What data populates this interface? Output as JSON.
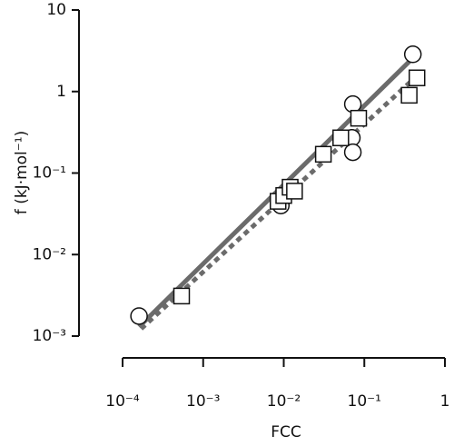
{
  "chart_data": {
    "type": "scatter",
    "xscale": "log",
    "yscale": "log",
    "xlabel": "FCC",
    "ylabel": "f (kJ·mol⁻¹)",
    "xlim": [
      0.0001,
      1
    ],
    "ylim": [
      0.001,
      10
    ],
    "xticks": [
      {
        "value": 0.0001,
        "label": "10⁻⁴"
      },
      {
        "value": 0.001,
        "label": "10⁻³"
      },
      {
        "value": 0.01,
        "label": "10⁻²"
      },
      {
        "value": 0.1,
        "label": "10⁻¹"
      },
      1
    ],
    "yticks": [
      {
        "value": 0.001,
        "label": "10⁻³"
      },
      {
        "value": 0.01,
        "label": "10⁻²"
      },
      {
        "value": 0.1,
        "label": "10⁻¹"
      },
      1,
      10
    ],
    "series": [
      {
        "marker": "circle",
        "color": "#111111",
        "x": [
          0.00016,
          0.0092,
          0.07,
          0.072,
          0.072,
          0.4
        ],
        "values": [
          0.00176,
          0.04,
          0.27,
          0.18,
          0.7,
          2.86
        ]
      },
      {
        "marker": "square",
        "color": "#111111",
        "x": [
          0.00054,
          0.0085,
          0.01,
          0.012,
          0.0136,
          0.031,
          0.051,
          0.085,
          0.36,
          0.45
        ],
        "values": [
          0.0031,
          0.045,
          0.053,
          0.067,
          0.06,
          0.17,
          0.27,
          0.47,
          0.9,
          1.47
        ]
      },
      {
        "marker": "line",
        "dash": false,
        "color": "#6b6b6b",
        "x": [
          0.00016,
          0.42
        ],
        "values": [
          0.0013,
          2.7
        ]
      },
      {
        "marker": "line",
        "dash": true,
        "color": "#6b6b6b",
        "x": [
          0.00017,
          0.5
        ],
        "values": [
          0.00123,
          1.71
        ]
      }
    ]
  }
}
